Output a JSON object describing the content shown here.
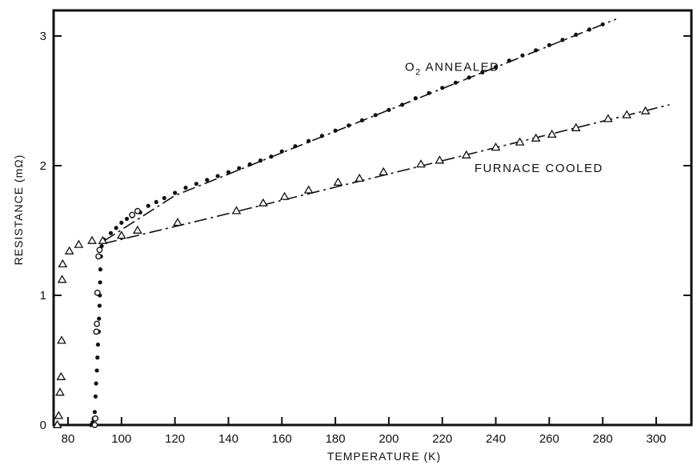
{
  "chart_data": {
    "type": "scatter",
    "title": "",
    "xlabel": "TEMPERATURE (K)",
    "ylabel": "RESISTANCE (mΩ)",
    "xlim": [
      76,
      308
    ],
    "ylim": [
      0,
      3.2
    ],
    "x_ticks": [
      80,
      100,
      120,
      140,
      160,
      180,
      200,
      220,
      240,
      260,
      280,
      300
    ],
    "y_ticks": [
      0,
      1,
      2,
      3
    ],
    "grid": false,
    "legend": "none (direct labels)",
    "annotations": [
      {
        "text": "O",
        "subscript": "2",
        "rest": " ANNEALED",
        "x": 206,
        "y": 2.73
      },
      {
        "text": "FURNACE COOLED",
        "x": 232,
        "y": 1.95
      }
    ],
    "series": [
      {
        "marker": "filled-circle",
        "points": [
          [
            88.6,
            0.0
          ],
          [
            89.2,
            0.02
          ],
          [
            89.6,
            0.05
          ],
          [
            90.0,
            0.1
          ],
          [
            90.3,
            0.22
          ],
          [
            90.5,
            0.32
          ],
          [
            90.8,
            0.42
          ],
          [
            91.0,
            0.52
          ],
          [
            91.2,
            0.62
          ],
          [
            91.5,
            0.72
          ],
          [
            91.6,
            0.82
          ],
          [
            91.8,
            0.92
          ],
          [
            91.9,
            1.0
          ],
          [
            92.0,
            1.1
          ],
          [
            92.1,
            1.2
          ],
          [
            92.3,
            1.3
          ],
          [
            92.6,
            1.38
          ],
          [
            93.4,
            1.43
          ],
          [
            96,
            1.48
          ],
          [
            98,
            1.52
          ],
          [
            100,
            1.56
          ],
          [
            102,
            1.59
          ],
          [
            104,
            1.61
          ],
          [
            107,
            1.64
          ],
          [
            110,
            1.69
          ],
          [
            113,
            1.72
          ],
          [
            116,
            1.75
          ],
          [
            120,
            1.79
          ],
          [
            124,
            1.83
          ],
          [
            128,
            1.86
          ],
          [
            132,
            1.89
          ],
          [
            136,
            1.92
          ],
          [
            140,
            1.95
          ],
          [
            144,
            1.98
          ],
          [
            148,
            2.01
          ],
          [
            152,
            2.04
          ],
          [
            156,
            2.07
          ],
          [
            160,
            2.11
          ],
          [
            165,
            2.15
          ],
          [
            170,
            2.19
          ],
          [
            175,
            2.23
          ],
          [
            180,
            2.27
          ],
          [
            185,
            2.31
          ],
          [
            190,
            2.35
          ],
          [
            195,
            2.39
          ],
          [
            200,
            2.43
          ],
          [
            205,
            2.47
          ],
          [
            210,
            2.52
          ],
          [
            215,
            2.56
          ],
          [
            220,
            2.6
          ],
          [
            225,
            2.64
          ],
          [
            230,
            2.68
          ],
          [
            235,
            2.72
          ],
          [
            240,
            2.76
          ],
          [
            245,
            2.81
          ],
          [
            250,
            2.85
          ],
          [
            255,
            2.89
          ],
          [
            260,
            2.93
          ],
          [
            265,
            2.97
          ],
          [
            270,
            3.01
          ],
          [
            275,
            3.05
          ],
          [
            280,
            3.09
          ]
        ]
      },
      {
        "marker": "open-circle",
        "points": [
          [
            90.0,
            0.0
          ],
          [
            90.2,
            0.05
          ],
          [
            90.6,
            0.72
          ],
          [
            90.8,
            0.78
          ],
          [
            91.0,
            1.02
          ],
          [
            91.4,
            1.3
          ],
          [
            91.8,
            1.35
          ],
          [
            104,
            1.62
          ],
          [
            106,
            1.65
          ]
        ]
      },
      {
        "marker": "triangle",
        "points": [
          [
            76,
            0.0
          ],
          [
            76.5,
            0.07
          ],
          [
            77,
            0.25
          ],
          [
            77.4,
            0.37
          ],
          [
            77.6,
            0.65
          ],
          [
            77.8,
            1.12
          ],
          [
            78,
            1.24
          ],
          [
            80.5,
            1.34
          ],
          [
            84,
            1.39
          ],
          [
            89,
            1.42
          ],
          [
            93,
            1.42
          ],
          [
            100,
            1.46
          ],
          [
            106,
            1.5
          ],
          [
            121,
            1.56
          ],
          [
            143,
            1.65
          ],
          [
            153,
            1.71
          ],
          [
            161,
            1.76
          ],
          [
            170,
            1.81
          ],
          [
            181,
            1.87
          ],
          [
            189,
            1.9
          ],
          [
            198,
            1.95
          ],
          [
            212,
            2.01
          ],
          [
            219,
            2.04
          ],
          [
            229,
            2.08
          ],
          [
            240,
            2.14
          ],
          [
            249,
            2.18
          ],
          [
            255,
            2.21
          ],
          [
            261,
            2.24
          ],
          [
            270,
            2.29
          ],
          [
            282,
            2.36
          ],
          [
            289,
            2.39
          ],
          [
            296,
            2.42
          ]
        ]
      }
    ],
    "fit_lines": [
      {
        "points": [
          [
            93.5,
            1.42
          ],
          [
            120,
            1.77
          ],
          [
            285,
            3.13
          ]
        ]
      },
      {
        "points": [
          [
            93.5,
            1.4
          ],
          [
            130,
            1.58
          ],
          [
            305,
            2.47
          ]
        ]
      }
    ]
  }
}
